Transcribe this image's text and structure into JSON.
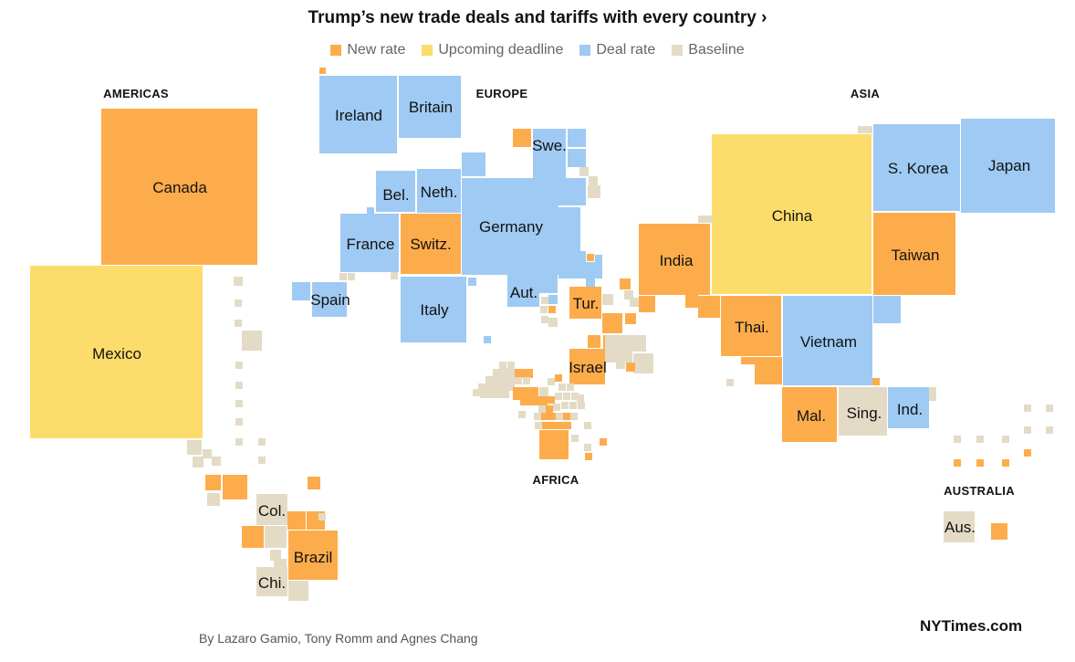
{
  "header": {
    "title": "Trump’s new trade deals and tariffs with every country ›"
  },
  "legend": [
    {
      "label": "New rate",
      "color": "#FDAC4C"
    },
    {
      "label": "Upcoming deadline",
      "color": "#FCDC6B"
    },
    {
      "label": "Deal rate",
      "color": "#9FCAF4"
    },
    {
      "label": "Baseline",
      "color": "#E3DBC5"
    }
  ],
  "regions": [
    "AMERICAS",
    "EUROPE",
    "ASIA",
    "AFRICA",
    "AUSTRALIA"
  ],
  "countries": [
    "Canada",
    "Mexico",
    "Col.",
    "Brazil",
    "Chi.",
    "Ireland",
    "Britain",
    "Swe.",
    "Bel.",
    "Neth.",
    "Germany",
    "France",
    "Switz.",
    "Spain",
    "Italy",
    "Aut.",
    "Tur.",
    "Israel",
    "India",
    "China",
    "S. Korea",
    "Japan",
    "Taiwan",
    "Thai.",
    "Vietnam",
    "Mal.",
    "Sing.",
    "Ind.",
    "Aus."
  ],
  "footer": {
    "byline": "By Lazaro Gamio, Tony Romm and Agnes Chang",
    "brand": "NYTimes.com"
  }
}
